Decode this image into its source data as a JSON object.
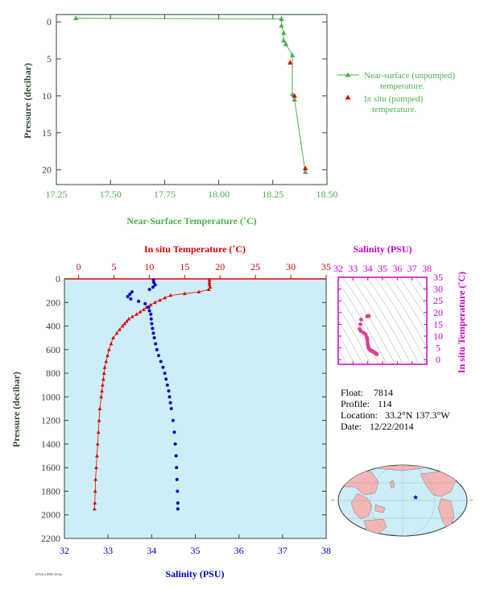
{
  "colors": {
    "green": "#4caf50",
    "red": "#e00000",
    "blue": "#0000cc",
    "magenta": "#cc00cc",
    "pink": "#e0408c",
    "axis_dark": "#2e4a2e",
    "panel_bg": "#cdeef7",
    "land": "#f2b6b6",
    "ocean": "#cdeef7"
  },
  "info": {
    "float_label": "Float:",
    "float_value": "7814",
    "profile_label": "Profile:",
    "profile_value": "114",
    "location_label": "Location:",
    "location_value": "33.2°N  137.3°W",
    "date_label": "Date:",
    "date_value": "12/22/2014",
    "footer": "f4704/w.8900 2014a"
  },
  "chart_data": [
    {
      "type": "line",
      "id": "near-surface",
      "xlabel": "Near-Surface Temperature (˚C)",
      "ylabel": "Pressure (decibar)",
      "xlim": [
        17.25,
        18.5
      ],
      "ylim": [
        22,
        -1
      ],
      "xticks": [
        "17.25",
        "17.50",
        "17.75",
        "18.00",
        "18.25",
        "18.50"
      ],
      "yticks": [
        "0",
        "5",
        "10",
        "15",
        "20"
      ],
      "legend_position": "right",
      "series": [
        {
          "name": "Near-surface (unpumped) temperature.",
          "marker": "triangle",
          "x": [
            17.34,
            18.29,
            18.29,
            18.3,
            18.3,
            18.31,
            18.34,
            18.34,
            18.35,
            18.4
          ],
          "y": [
            -0.5,
            -0.4,
            0.5,
            1.5,
            2.5,
            3.0,
            4.5,
            9.8,
            10.5,
            20.3
          ]
        },
        {
          "name": "In situ (pumped) temperature.",
          "marker": "triangle",
          "x": [
            18.33,
            18.35,
            18.4
          ],
          "y": [
            5.5,
            10.0,
            19.8
          ]
        }
      ]
    },
    {
      "type": "line",
      "id": "profile",
      "top_xlabel": "In situ Temperature (˚C)",
      "bottom_xlabel": "Salinity (PSU)",
      "ylabel": "Pressure (decibar)",
      "temp_xlim": [
        -2,
        35
      ],
      "sal_xlim": [
        32,
        38
      ],
      "ylim": [
        2200,
        0
      ],
      "temp_ticks": [
        "0",
        "5",
        "10",
        "15",
        "20",
        "25",
        "30",
        "35"
      ],
      "sal_ticks": [
        "32",
        "33",
        "34",
        "35",
        "36",
        "37",
        "38"
      ],
      "yticks": [
        "0",
        "200",
        "400",
        "600",
        "800",
        "1000",
        "1200",
        "1400",
        "1600",
        "1800",
        "2000",
        "2200"
      ],
      "temperature": {
        "p": [
          10,
          30,
          50,
          70,
          90,
          110,
          125,
          140,
          160,
          180,
          200,
          220,
          240,
          260,
          280,
          300,
          320,
          340,
          360,
          380,
          400,
          430,
          460,
          500,
          550,
          600,
          650,
          700,
          750,
          800,
          850,
          900,
          950,
          1000,
          1100,
          1200,
          1300,
          1400,
          1500,
          1600,
          1700,
          1800,
          1900,
          1950
        ],
        "t": [
          18.5,
          18.5,
          18.5,
          18.6,
          18.4,
          17.0,
          15.0,
          13.0,
          12.2,
          11.5,
          10.8,
          10.2,
          9.6,
          9.2,
          8.7,
          8.2,
          7.6,
          7.1,
          6.8,
          6.5,
          6.2,
          5.8,
          5.4,
          4.9,
          4.6,
          4.3,
          4.1,
          3.9,
          3.7,
          3.6,
          3.5,
          3.4,
          3.3,
          3.2,
          3.0,
          2.9,
          2.8,
          2.7,
          2.6,
          2.5,
          2.4,
          2.35,
          2.3,
          2.25
        ]
      },
      "salinity": {
        "p": [
          10,
          30,
          50,
          70,
          90,
          110,
          130,
          150,
          170,
          190,
          210,
          240,
          270,
          300,
          340,
          380,
          420,
          460,
          500,
          550,
          600,
          650,
          700,
          750,
          800,
          850,
          900,
          950,
          1000,
          1050,
          1100,
          1200,
          1300,
          1400,
          1500,
          1600,
          1700,
          1800,
          1900,
          1950
        ],
        "s": [
          34.04,
          34.05,
          34.08,
          34.03,
          33.95,
          33.55,
          33.5,
          33.45,
          33.52,
          33.7,
          33.85,
          33.93,
          33.95,
          33.98,
          33.99,
          34.0,
          34.02,
          34.04,
          34.06,
          34.09,
          34.12,
          34.16,
          34.21,
          34.26,
          34.3,
          34.33,
          34.36,
          34.39,
          34.41,
          34.43,
          34.45,
          34.49,
          34.52,
          34.54,
          34.56,
          34.57,
          34.58,
          34.59,
          34.6,
          34.6
        ]
      }
    },
    {
      "type": "scatter",
      "id": "ts-diagram",
      "title": "Salinity (PSU)",
      "ylabel": "In situ Temperature (˚C)",
      "xlim": [
        32,
        38
      ],
      "ylim": [
        -2,
        35
      ],
      "xticks": [
        "32",
        "33",
        "34",
        "35",
        "36",
        "37",
        "38"
      ],
      "yticks": [
        "0",
        "5",
        "10",
        "15",
        "20",
        "25",
        "30",
        "35"
      ]
    }
  ]
}
